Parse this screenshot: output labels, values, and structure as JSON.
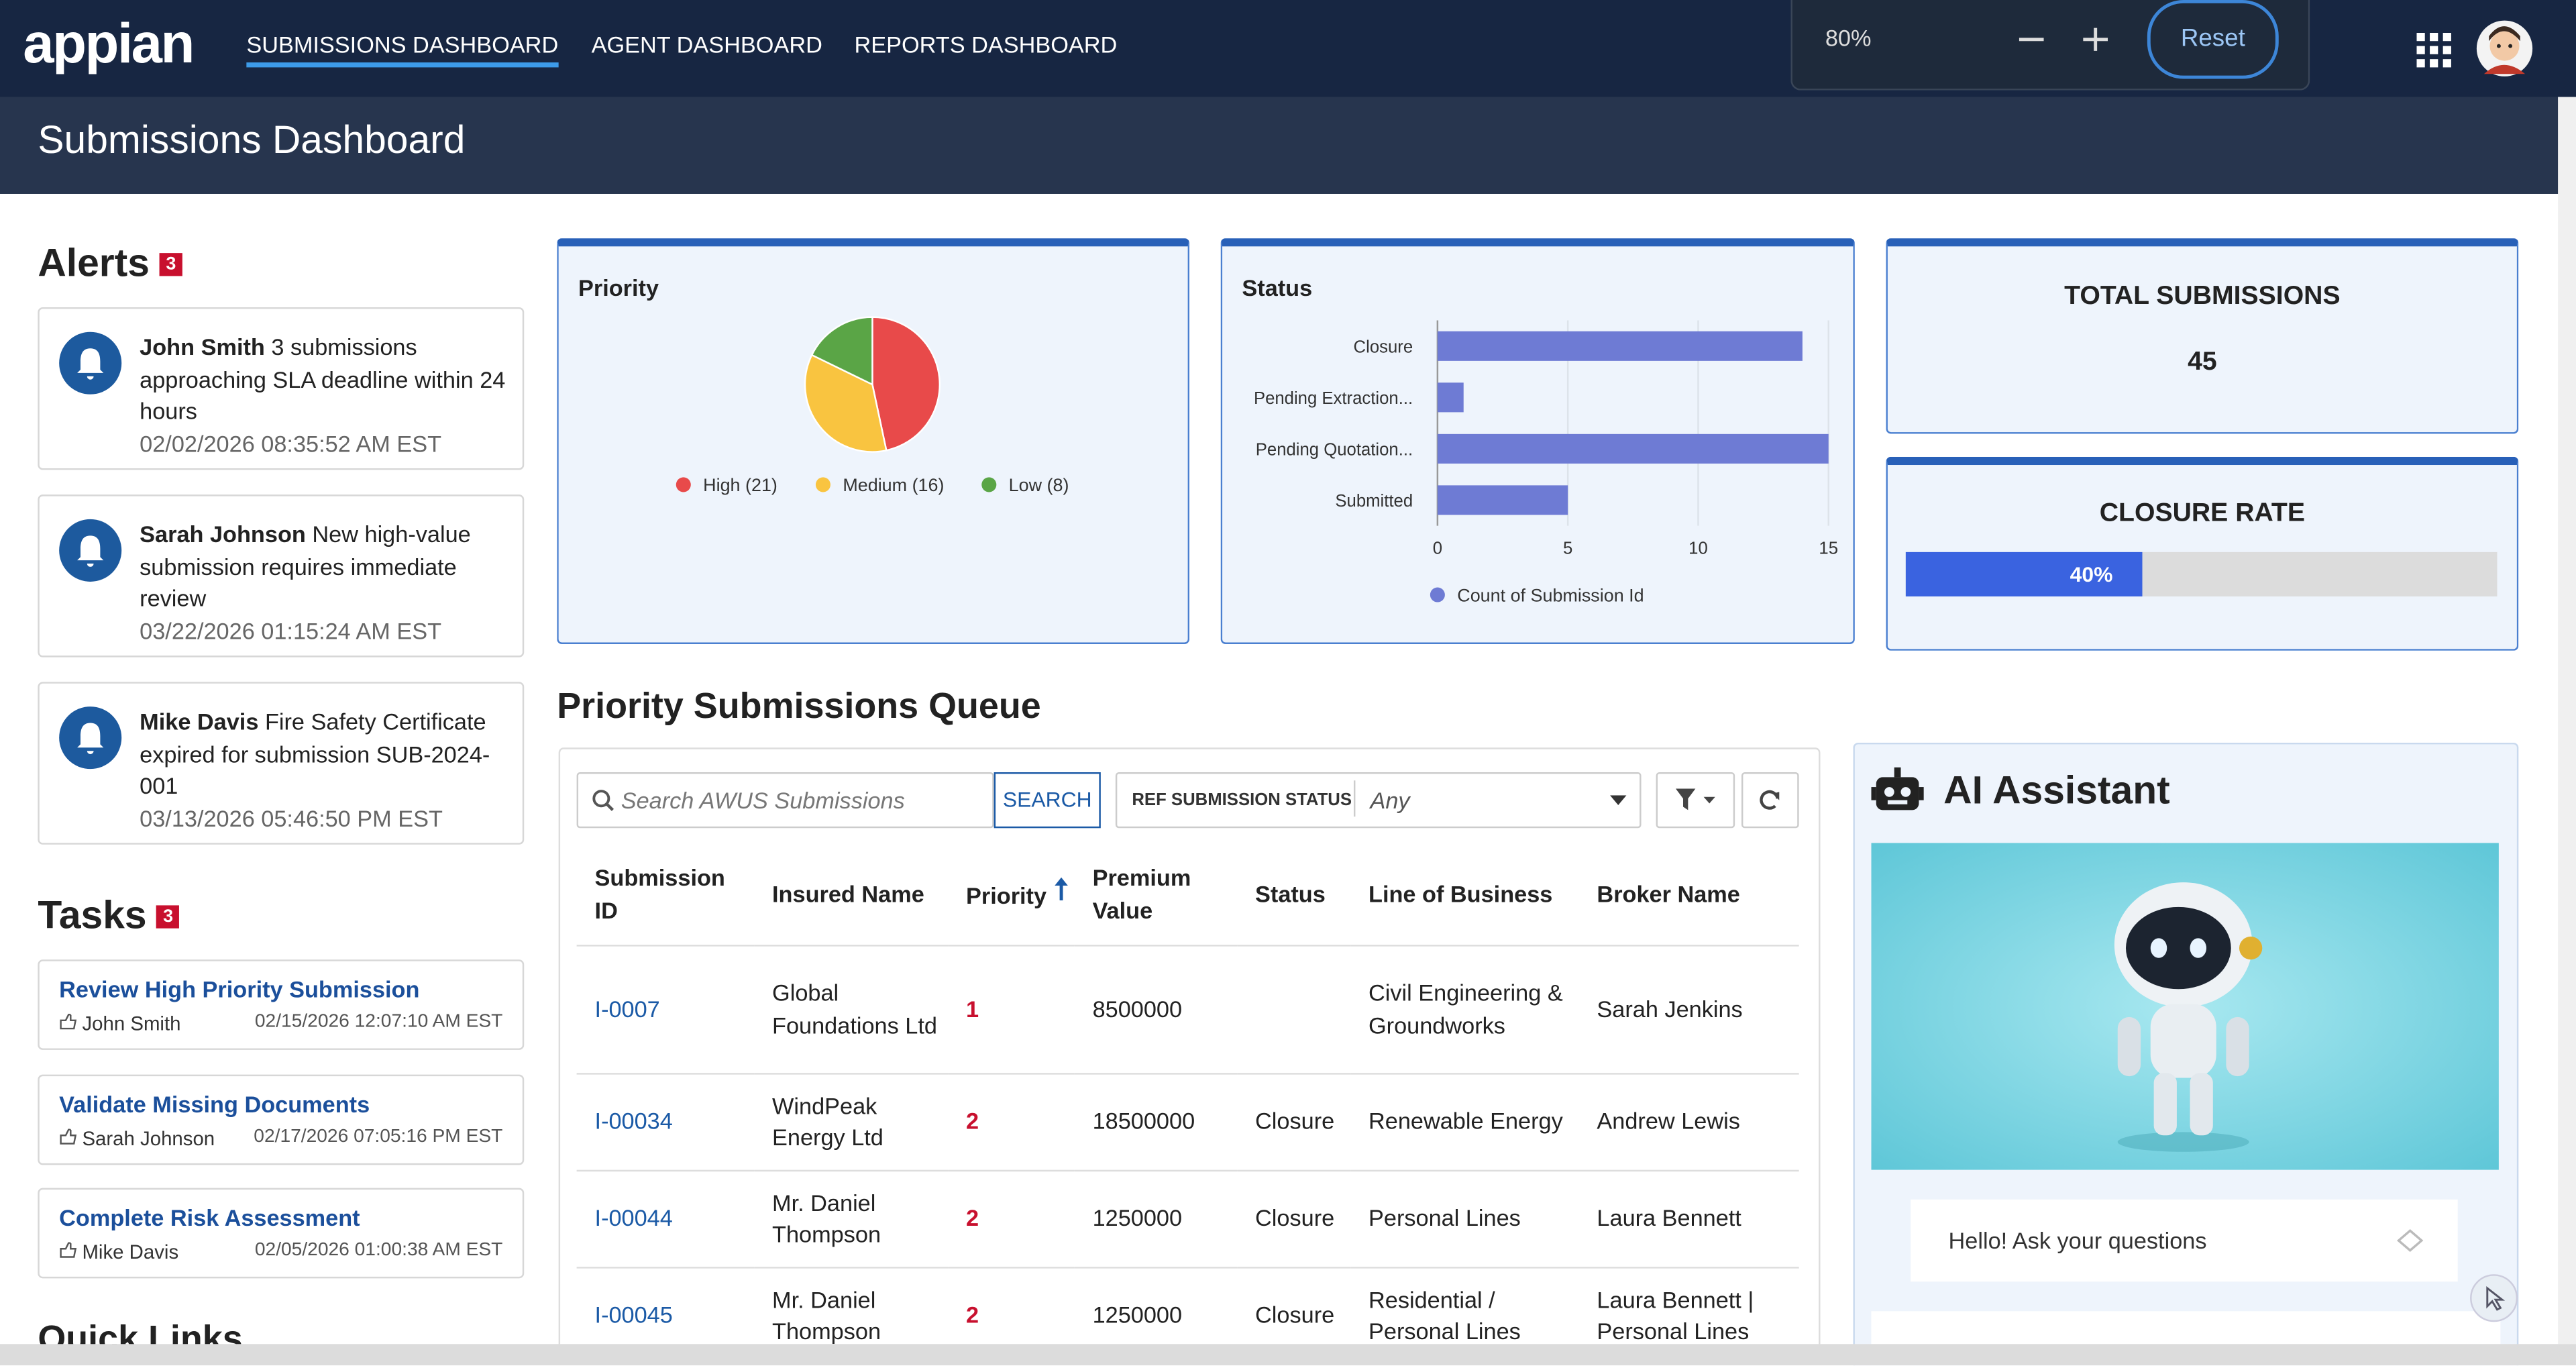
{
  "nav": {
    "logo": "appian",
    "tabs": [
      "SUBMISSIONS DASHBOARD",
      "AGENT DASHBOARD",
      "REPORTS DASHBOARD"
    ]
  },
  "zoom": {
    "level": "80%",
    "reset": "Reset"
  },
  "header": {
    "title": "Submissions Dashboard"
  },
  "alerts": {
    "title": "Alerts",
    "count": "3",
    "items": [
      {
        "name": "John Smith",
        "text": "3 submissions approaching SLA deadline within 24 hours",
        "time": "02/02/2026 08:35:52 AM EST"
      },
      {
        "name": "Sarah Johnson",
        "text": "New high-value submission requires immediate review",
        "time": "03/22/2026 01:15:24 AM EST"
      },
      {
        "name": "Mike Davis",
        "text": "Fire Safety Certificate expired for submission SUB-2024-001",
        "time": "03/13/2026 05:46:50 PM EST"
      }
    ]
  },
  "tasks": {
    "title": "Tasks",
    "count": "3",
    "items": [
      {
        "title": "Review High Priority Submission",
        "user": "John Smith",
        "time": "02/15/2026 12:07:10 AM EST"
      },
      {
        "title": "Validate Missing Documents",
        "user": "Sarah Johnson",
        "time": "02/17/2026 07:05:16 PM EST"
      },
      {
        "title": "Complete Risk Assessment",
        "user": "Mike Davis",
        "time": "02/05/2026 01:00:38 AM EST"
      }
    ]
  },
  "quick_links": {
    "title": "Quick Links"
  },
  "chart_data": [
    {
      "type": "pie",
      "title": "Priority",
      "categories": [
        "High (21)",
        "Medium (16)",
        "Low (8)"
      ],
      "values": [
        21,
        16,
        8
      ],
      "colors": [
        "#e84a4a",
        "#f9c440",
        "#5aa546"
      ]
    },
    {
      "type": "hbar",
      "title": "Status",
      "categories": [
        "Closure",
        "Pending Extraction...",
        "Pending Quotation...",
        "Submitted"
      ],
      "series": [
        {
          "name": "Count of Submission Id",
          "color": "#6e7bd4",
          "values": [
            14,
            1,
            15,
            5
          ]
        }
      ],
      "xlim": [
        0,
        15
      ],
      "xticks": [
        0,
        5,
        10,
        15
      ],
      "grid": true
    }
  ],
  "kpis": {
    "total": {
      "title": "TOTAL SUBMISSIONS",
      "value": "45"
    },
    "closure_rate": {
      "title": "CLOSURE RATE",
      "value": 40,
      "value_label": "40%"
    }
  },
  "queue": {
    "title": "Priority Submissions Queue",
    "search_placeholder": "Search AWUS Submissions",
    "search_button": "SEARCH",
    "filter_label": "REF SUBMISSION STATUS",
    "filter_value": "Any",
    "columns": [
      "Submission ID",
      "Insured Name",
      "Priority",
      "Premium Value",
      "Status",
      "Line of Business",
      "Broker Name"
    ],
    "rows": [
      [
        "I-0007",
        "Global Foundations Ltd",
        "1",
        "8500000",
        null,
        "Civil Engineering & Groundworks",
        "Sarah Jenkins"
      ],
      [
        "I-00034",
        "WindPeak Energy Ltd",
        "2",
        "18500000",
        "Closure",
        "Renewable Energy",
        "Andrew Lewis"
      ],
      [
        "I-00044",
        "Mr. Daniel Thompson",
        "2",
        "1250000",
        "Closure",
        "Personal Lines",
        "Laura Bennett"
      ],
      [
        "I-00045",
        "Mr. Daniel Thompson",
        "2",
        "1250000",
        "Closure",
        "Residential / Personal Lines",
        "Laura Bennett | Personal Lines"
      ]
    ]
  },
  "assistant": {
    "title": "AI Assistant",
    "placeholder": "Hello! Ask your questions"
  }
}
